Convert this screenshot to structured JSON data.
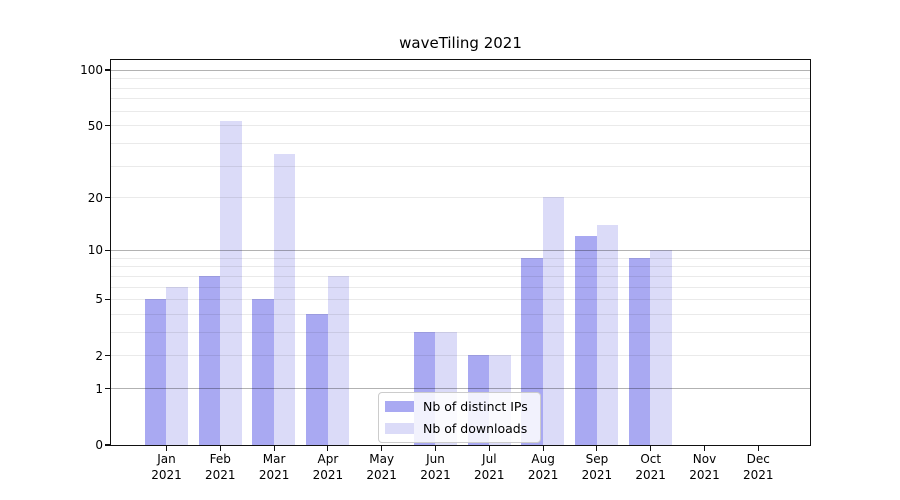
{
  "chart_data": {
    "type": "bar",
    "title": "waveTiling 2021",
    "categories": [
      "Jan 2021",
      "Feb 2021",
      "Mar 2021",
      "Apr 2021",
      "May 2021",
      "Jun 2021",
      "Jul 2021",
      "Aug 2021",
      "Sep 2021",
      "Oct 2021",
      "Nov 2021",
      "Dec 2021"
    ],
    "series": [
      {
        "name": "Nb of distinct IPs",
        "color": "#a9a9f2",
        "values": [
          5,
          7,
          5,
          4,
          0,
          3,
          2,
          9,
          12,
          9,
          0,
          0
        ]
      },
      {
        "name": "Nb of downloads",
        "color": "#dbdbf8",
        "values": [
          6,
          53,
          35,
          7,
          0,
          3,
          2,
          20,
          14,
          10,
          0,
          0
        ]
      }
    ],
    "xlabel": "",
    "ylabel": "",
    "yscale": "log1p",
    "ylim": [
      0,
      100
    ],
    "yticks": [
      0,
      1,
      2,
      5,
      10,
      20,
      50,
      100
    ],
    "minor_gridlines": [
      2,
      3,
      4,
      5,
      6,
      7,
      8,
      9,
      20,
      30,
      40,
      50,
      60,
      70,
      80,
      90
    ],
    "major_gridlines": [
      1,
      10,
      100
    ],
    "grid": true,
    "legend": {
      "position": "lower center",
      "entries": [
        "Nb of distinct IPs",
        "Nb of downloads"
      ]
    }
  },
  "colors": {
    "bar_dark": "#a9a9f2",
    "bar_light": "#dbdbf8",
    "spine": "#111111",
    "major_grid": "#b3b3b3",
    "minor_grid": "#eaeaea",
    "background": "#ffffff"
  }
}
